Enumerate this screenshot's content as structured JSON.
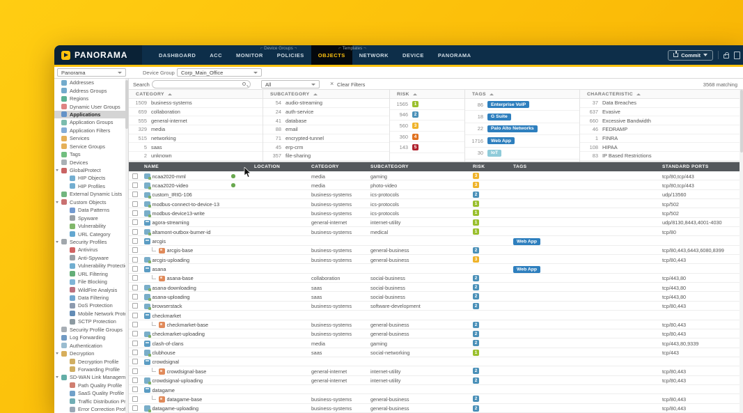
{
  "nav": {
    "brand": "PANORAMA",
    "tabs": [
      "DASHBOARD",
      "ACC",
      "MONITOR",
      "POLICIES",
      "OBJECTS",
      "NETWORK",
      "DEVICE",
      "PANORAMA"
    ],
    "active_tab": "OBJECTS",
    "group_labels": [
      "Device Groups",
      "Templates"
    ],
    "commit_label": "Commit"
  },
  "context": {
    "value": "Panorama"
  },
  "device_group": {
    "label": "Device Group",
    "value": "Corp_Main_Office"
  },
  "search": {
    "label": "Search",
    "value": "",
    "all": "All",
    "clear": "Clear Filters",
    "matching": "3568 matching"
  },
  "colors": {
    "accent": "#ffc20e",
    "risk": {
      "1": "#9abf2e",
      "2": "#4a90b8",
      "3": "#efb32a",
      "4": "#e0711f",
      "5": "#b0222d"
    },
    "tag_blue": "#2e7fbe",
    "tag_cyan": "#8fcbd9"
  },
  "sidebar": {
    "items": [
      {
        "label": "Addresses",
        "level": 0,
        "icon": "addresses-icon",
        "color": "#5b9cc3"
      },
      {
        "label": "Address Groups",
        "level": 0,
        "icon": "address-groups-icon",
        "color": "#5b9cc3"
      },
      {
        "label": "Regions",
        "level": 0,
        "icon": "regions-icon",
        "color": "#3fa57f"
      },
      {
        "label": "Dynamic User Groups",
        "level": 0,
        "icon": "dynamic-user-groups-icon",
        "color": "#d96d6d"
      },
      {
        "label": "Applications",
        "level": 0,
        "icon": "applications-icon",
        "color": "#4f86c4",
        "selected": true
      },
      {
        "label": "Application Groups",
        "level": 0,
        "icon": "application-groups-icon",
        "color": "#64b0a0"
      },
      {
        "label": "Application Filters",
        "level": 0,
        "icon": "application-filters-icon",
        "color": "#6f9fd0"
      },
      {
        "label": "Services",
        "level": 0,
        "icon": "services-icon",
        "color": "#e0a23c"
      },
      {
        "label": "Service Groups",
        "level": 0,
        "icon": "service-groups-icon",
        "color": "#e0a23c"
      },
      {
        "label": "Tags",
        "level": 0,
        "icon": "tags-icon",
        "color": "#58b368"
      },
      {
        "label": "Devices",
        "level": 0,
        "icon": "devices-icon",
        "color": "#9aa2a8"
      },
      {
        "label": "GlobalProtect",
        "level": 0,
        "icon": "globalprotect-icon",
        "color": "#c04848",
        "expanded": true
      },
      {
        "label": "HIP Objects",
        "level": 1,
        "icon": "hip-objects-icon",
        "color": "#5aa0c8"
      },
      {
        "label": "HIP Profiles",
        "level": 1,
        "icon": "hip-profiles-icon",
        "color": "#5aa0c8"
      },
      {
        "label": "External Dynamic Lists",
        "level": 0,
        "icon": "external-dynamic-lists-icon",
        "color": "#58a868"
      },
      {
        "label": "Custom Objects",
        "level": 0,
        "icon": "custom-objects-icon",
        "color": "#c05858",
        "expanded": true
      },
      {
        "label": "Data Patterns",
        "level": 1,
        "icon": "data-patterns-icon",
        "color": "#5a88c8"
      },
      {
        "label": "Spyware",
        "level": 1,
        "icon": "spyware-icon",
        "color": "#888f95"
      },
      {
        "label": "Vulnerability",
        "level": 1,
        "icon": "vulnerability-icon",
        "color": "#6aaa50"
      },
      {
        "label": "URL Category",
        "level": 1,
        "icon": "url-category-icon",
        "color": "#4898c8"
      },
      {
        "label": "Security Profiles",
        "level": 0,
        "icon": "security-profiles-icon",
        "color": "#90989e",
        "expanded": true
      },
      {
        "label": "Antivirus",
        "level": 1,
        "icon": "antivirus-icon",
        "color": "#c84848"
      },
      {
        "label": "Anti-Spyware",
        "level": 1,
        "icon": "anti-spyware-icon",
        "color": "#8a9198"
      },
      {
        "label": "Vulnerability Protection",
        "level": 1,
        "icon": "vulnerability-protection-icon",
        "color": "#58a0c8"
      },
      {
        "label": "URL Filtering",
        "level": 1,
        "icon": "url-filtering-icon",
        "color": "#48a060"
      },
      {
        "label": "File Blocking",
        "level": 1,
        "icon": "file-blocking-icon",
        "color": "#68a8d0"
      },
      {
        "label": "WildFire Analysis",
        "level": 1,
        "icon": "wildfire-analysis-icon",
        "color": "#b05868"
      },
      {
        "label": "Data Filtering",
        "level": 1,
        "icon": "data-filtering-icon",
        "color": "#5898c8"
      },
      {
        "label": "DoS Protection",
        "level": 1,
        "icon": "dos-protection-icon",
        "color": "#7888a0"
      },
      {
        "label": "Mobile Network Protection",
        "level": 1,
        "icon": "mobile-network-protection-icon",
        "color": "#4878a8"
      },
      {
        "label": "SCTP Protection",
        "level": 1,
        "icon": "sctp-protection-icon",
        "color": "#788890"
      },
      {
        "label": "Security Profile Groups",
        "level": 0,
        "icon": "security-profile-groups-icon",
        "color": "#98a0a8"
      },
      {
        "label": "Log Forwarding",
        "level": 0,
        "icon": "log-forwarding-icon",
        "color": "#5888b8"
      },
      {
        "label": "Authentication",
        "level": 0,
        "icon": "authentication-icon",
        "color": "#88b0c8"
      },
      {
        "label": "Decryption",
        "level": 0,
        "icon": "decryption-icon",
        "color": "#d0a040",
        "expanded": true
      },
      {
        "label": "Decryption Profile",
        "level": 1,
        "icon": "decryption-profile-icon",
        "color": "#c8a048"
      },
      {
        "label": "Forwarding Profile",
        "level": 1,
        "icon": "forwarding-profile-icon",
        "color": "#c8a048"
      },
      {
        "label": "SD-WAN Link Management",
        "level": 0,
        "icon": "sdwan-link-management-icon",
        "color": "#48a098",
        "expanded": true
      },
      {
        "label": "Path Quality Profile",
        "level": 1,
        "icon": "path-quality-profile-icon",
        "color": "#c86858"
      },
      {
        "label": "SaaS Quality Profile",
        "level": 1,
        "icon": "saas-quality-profile-icon",
        "color": "#5890c0"
      },
      {
        "label": "Traffic Distribution Profile",
        "level": 1,
        "icon": "traffic-distribution-profile-icon",
        "color": "#58a0a8"
      },
      {
        "label": "Error Correction Profile",
        "level": 1,
        "icon": "error-correction-profile-icon",
        "color": "#8898a8"
      }
    ]
  },
  "filters": {
    "category": {
      "header": "CATEGORY",
      "rows": [
        {
          "count": "1509",
          "label": "business-systems"
        },
        {
          "count": "659",
          "label": "collaboration"
        },
        {
          "count": "555",
          "label": "general-internet"
        },
        {
          "count": "329",
          "label": "media"
        },
        {
          "count": "515",
          "label": "networking"
        },
        {
          "count": "5",
          "label": "saas"
        },
        {
          "count": "2",
          "label": "unknown"
        }
      ]
    },
    "subcategory": {
      "header": "SUBCATEGORY",
      "rows": [
        {
          "count": "54",
          "label": "audio-streaming"
        },
        {
          "count": "24",
          "label": "auth-service"
        },
        {
          "count": "41",
          "label": "database"
        },
        {
          "count": "88",
          "label": "email"
        },
        {
          "count": "71",
          "label": "encrypted-tunnel"
        },
        {
          "count": "45",
          "label": "erp-crm"
        },
        {
          "count": "357",
          "label": "file-sharing"
        },
        {
          "count": "73",
          "label": "gaming"
        }
      ]
    },
    "risk": {
      "header": "RISK",
      "rows": [
        {
          "count": "1565",
          "level": "1"
        },
        {
          "count": "946",
          "level": "2"
        },
        {
          "count": "560",
          "level": "3"
        },
        {
          "count": "360",
          "level": "4"
        },
        {
          "count": "143",
          "level": "5"
        }
      ]
    },
    "tags": {
      "header": "TAGS",
      "rows": [
        {
          "count": "86",
          "label": "Enterprise VoIP",
          "style": "blue"
        },
        {
          "count": "18",
          "label": "G Suite",
          "style": "blue"
        },
        {
          "count": "22",
          "label": "Palo Alto Networks",
          "style": "blue"
        },
        {
          "count": "1716",
          "label": "Web App",
          "style": "blue"
        },
        {
          "count": "30",
          "label": "IoT",
          "style": "cyan"
        }
      ]
    },
    "characteristic": {
      "header": "CHARACTERISTIC",
      "rows": [
        {
          "count": "37",
          "label": "Data Breaches"
        },
        {
          "count": "637",
          "label": "Evasive"
        },
        {
          "count": "660",
          "label": "Excessive Bandwidth"
        },
        {
          "count": "46",
          "label": "FEDRAMP"
        },
        {
          "count": "1",
          "label": "FINRA"
        },
        {
          "count": "108",
          "label": "HIPAA"
        },
        {
          "count": "83",
          "label": "IP Based Restrictions"
        },
        {
          "count": "943",
          "label": "New App-ID"
        }
      ]
    }
  },
  "table": {
    "columns": [
      "NAME",
      "LOCATION",
      "CATEGORY",
      "SUBCATEGORY",
      "RISK",
      "TAGS",
      "STANDARD PORTS"
    ],
    "rows": [
      {
        "name": "ncaa2020-mml",
        "kind": "custom",
        "dot": true,
        "location": "",
        "category": "media",
        "subcategory": "gaming",
        "risk": "3",
        "tags": [],
        "ports": "tcp/80,tcp/443"
      },
      {
        "name": "ncaa2020-video",
        "kind": "custom",
        "dot": true,
        "location": "",
        "category": "media",
        "subcategory": "photo-video",
        "risk": "3",
        "tags": [],
        "ports": "tcp/80,tcp/443"
      },
      {
        "name": "custom_IRIG-106",
        "kind": "custom",
        "location": "",
        "category": "business-systems",
        "subcategory": "ics-protocols",
        "risk": "2",
        "tags": [],
        "ports": "udp/13560"
      },
      {
        "name": "modbus-connect-to-device-13",
        "kind": "custom",
        "location": "",
        "category": "business-systems",
        "subcategory": "ics-protocols",
        "risk": "1",
        "tags": [],
        "ports": "tcp/502"
      },
      {
        "name": "modbus-device13-write",
        "kind": "custom",
        "location": "",
        "category": "business-systems",
        "subcategory": "ics-protocols",
        "risk": "1",
        "tags": [],
        "ports": "tcp/502"
      },
      {
        "name": "agora-streaming",
        "kind": "container",
        "location": "",
        "category": "general-internet",
        "subcategory": "internet-utility",
        "risk": "1",
        "tags": [],
        "ports": "udp/8130,8443,4001-4030"
      },
      {
        "name": "altamont-outbox-burner-id",
        "kind": "custom",
        "location": "",
        "category": "business-systems",
        "subcategory": "medical",
        "risk": "1",
        "tags": [],
        "ports": "tcp/80"
      },
      {
        "name": "arcgis",
        "kind": "container",
        "location": "",
        "category": "",
        "subcategory": "",
        "risk": "",
        "tags": [
          "Web App"
        ],
        "ports": ""
      },
      {
        "name": "arcgis-base",
        "kind": "base",
        "location": "",
        "category": "business-systems",
        "subcategory": "general-business",
        "risk": "2",
        "tags": [],
        "ports": "tcp/80,443,6443,6080,8399"
      },
      {
        "name": "arcgis-uploading",
        "kind": "custom",
        "location": "",
        "category": "business-systems",
        "subcategory": "general-business",
        "risk": "3",
        "tags": [],
        "ports": "tcp/80,443"
      },
      {
        "name": "asana",
        "kind": "container",
        "location": "",
        "category": "",
        "subcategory": "",
        "risk": "",
        "tags": [
          "Web App"
        ],
        "ports": ""
      },
      {
        "name": "asana-base",
        "kind": "base",
        "location": "",
        "category": "collaboration",
        "subcategory": "social-business",
        "risk": "2",
        "tags": [],
        "ports": "tcp/443,80"
      },
      {
        "name": "asana-downloading",
        "kind": "custom",
        "location": "",
        "category": "saas",
        "subcategory": "social-business",
        "risk": "2",
        "tags": [],
        "ports": "tcp/443,80"
      },
      {
        "name": "asana-uploading",
        "kind": "custom",
        "location": "",
        "category": "saas",
        "subcategory": "social-business",
        "risk": "2",
        "tags": [],
        "ports": "tcp/443,80"
      },
      {
        "name": "browserstack",
        "kind": "custom",
        "location": "",
        "category": "business-systems",
        "subcategory": "software-development",
        "risk": "2",
        "tags": [],
        "ports": "tcp/80,443"
      },
      {
        "name": "checkmarket",
        "kind": "container",
        "location": "",
        "category": "",
        "subcategory": "",
        "risk": "",
        "tags": [],
        "ports": ""
      },
      {
        "name": "checkmarket-base",
        "kind": "base",
        "location": "",
        "category": "business-systems",
        "subcategory": "general-business",
        "risk": "2",
        "tags": [],
        "ports": "tcp/80,443"
      },
      {
        "name": "checkmarket-uploading",
        "kind": "custom",
        "location": "",
        "category": "business-systems",
        "subcategory": "general-business",
        "risk": "2",
        "tags": [],
        "ports": "tcp/80,443"
      },
      {
        "name": "clash-of-clans",
        "kind": "container",
        "location": "",
        "category": "media",
        "subcategory": "gaming",
        "risk": "2",
        "tags": [],
        "ports": "tcp/443,80,9339"
      },
      {
        "name": "clubhouse",
        "kind": "custom",
        "location": "",
        "category": "saas",
        "subcategory": "social-networking",
        "risk": "1",
        "tags": [],
        "ports": "tcp/443"
      },
      {
        "name": "crowdsignal",
        "kind": "container",
        "location": "",
        "category": "",
        "subcategory": "",
        "risk": "",
        "tags": [],
        "ports": ""
      },
      {
        "name": "crowdsignal-base",
        "kind": "base",
        "location": "",
        "category": "general-internet",
        "subcategory": "internet-utility",
        "risk": "2",
        "tags": [],
        "ports": "tcp/80,443"
      },
      {
        "name": "crowdsignal-uploading",
        "kind": "custom",
        "location": "",
        "category": "general-internet",
        "subcategory": "internet-utility",
        "risk": "2",
        "tags": [],
        "ports": "tcp/80,443"
      },
      {
        "name": "datagame",
        "kind": "container",
        "location": "",
        "category": "",
        "subcategory": "",
        "risk": "",
        "tags": [],
        "ports": ""
      },
      {
        "name": "datagame-base",
        "kind": "base",
        "location": "",
        "category": "business-systems",
        "subcategory": "general-business",
        "risk": "2",
        "tags": [],
        "ports": "tcp/80,443"
      },
      {
        "name": "datagame-uploading",
        "kind": "custom",
        "location": "",
        "category": "business-systems",
        "subcategory": "general-business",
        "risk": "2",
        "tags": [],
        "ports": "tcp/80,443"
      }
    ]
  }
}
